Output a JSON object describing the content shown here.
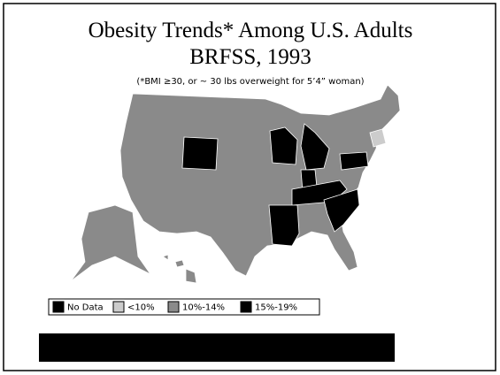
{
  "header": {
    "title_lines": [
      "Obesity Trends* Among U.S. Adults",
      "BRFSS, 1993"
    ],
    "subtitle": "(*BMI ≥30, or ~ 30 lbs overweight for 5’4” woman)"
  },
  "legend": [
    {
      "label": "No Data",
      "color": "#000000"
    },
    {
      "label": "<10%",
      "color": "#cccccc"
    },
    {
      "label": "10%-14%",
      "color": "#8a8a8a"
    },
    {
      "label": "15%-19%",
      "color": "#000000"
    }
  ]
}
